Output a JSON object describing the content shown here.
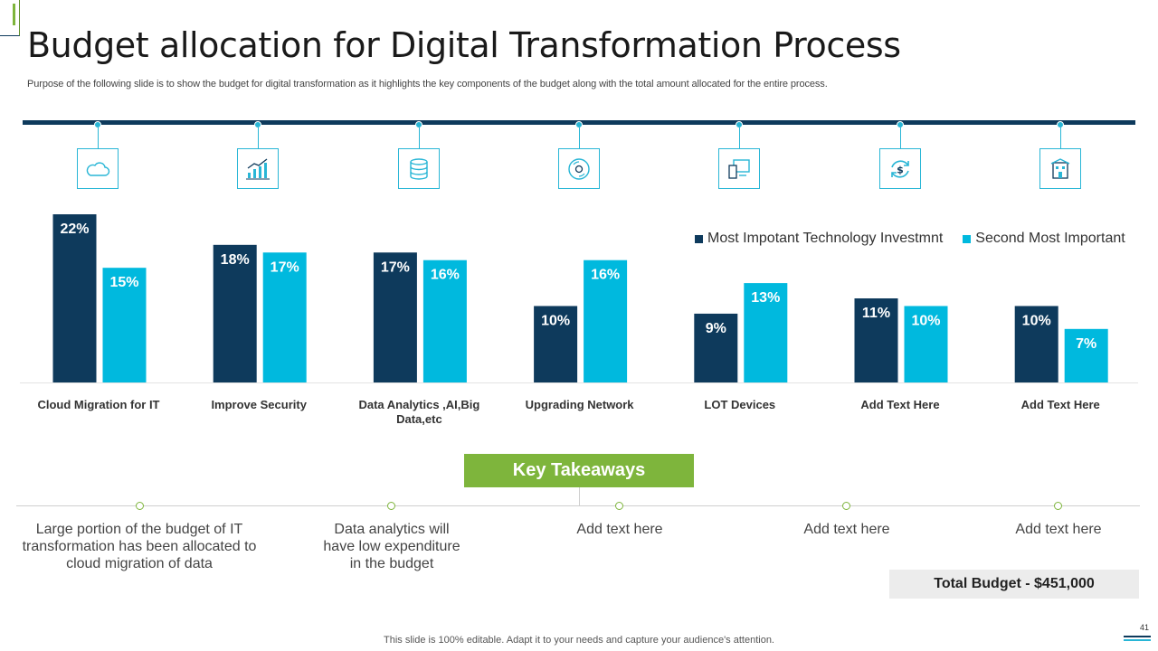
{
  "slide": {
    "title": "Budget allocation for Digital Transformation Process",
    "subtitle": "Purpose of the following slide is to show the budget for digital transformation as it highlights the key components of the budget along with the total amount allocated for the entire process.",
    "footer": "This slide is 100% editable. Adapt it to your needs and capture your audience's attention.",
    "page_number": "41"
  },
  "colors": {
    "navy": "#0e3a5c",
    "cyan": "#00b9de",
    "green": "#7eb53c",
    "icon_accent": "#29b6d6"
  },
  "icons": [
    "cloud-icon",
    "growth-chart-icon",
    "database-icon",
    "network-disc-icon",
    "devices-icon",
    "refresh-dollar-icon",
    "building-icon"
  ],
  "chart_data": {
    "type": "bar",
    "categories": [
      "Cloud Migration for IT",
      "Improve Security",
      "Data Analytics ,AI,Big Data,etc",
      "Upgrading Network",
      "LOT Devices",
      "Add Text Here",
      "Add Text Here"
    ],
    "series": [
      {
        "name": "Most Impotant Technology Investmnt",
        "color": "#0e3a5c",
        "values": [
          22,
          18,
          17,
          10,
          9,
          11,
          10
        ],
        "labels": [
          "22%",
          "18%",
          "17%",
          "10%",
          "9%",
          "11%",
          "10%"
        ]
      },
      {
        "name": "Second Most Important",
        "color": "#00b9de",
        "values": [
          15,
          17,
          16,
          16,
          13,
          10,
          7
        ],
        "labels": [
          "15%",
          "17%",
          "16%",
          "16%",
          "13%",
          "10%",
          "7%"
        ]
      }
    ],
    "ylim": [
      0,
      22
    ],
    "unit": "%",
    "title": "",
    "xlabel": "",
    "ylabel": "",
    "grid": false,
    "legend_position": "top-right"
  },
  "key_takeaways": {
    "title": "Key Takeaways",
    "items": [
      "Large portion of the budget of IT transformation has been allocated to cloud migration of data",
      "Data analytics will have low expenditure in the budget",
      "Add text here",
      "Add text here",
      "Add text here"
    ]
  },
  "total_budget": "Total Budget - $451,000"
}
